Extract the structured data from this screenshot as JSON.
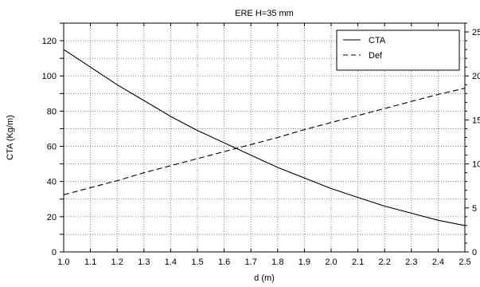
{
  "chart_data": {
    "type": "line",
    "title": "ERE H=35 mm",
    "xlabel": "d (m)",
    "ylabel": "CTA (Kg/m)",
    "y2label": "",
    "xlim": [
      1.0,
      2.5
    ],
    "ylim": [
      0,
      130
    ],
    "y2lim": [
      0,
      26
    ],
    "x_ticks": [
      "1.0",
      "1.1",
      "1.2",
      "1.3",
      "1.4",
      "1.5",
      "1.6",
      "1.7",
      "1.8",
      "1.9",
      "2.0",
      "2.1",
      "2.2",
      "2.3",
      "2.4",
      "2.5"
    ],
    "y_ticks": [
      "0",
      "20",
      "40",
      "60",
      "80",
      "100",
      "120"
    ],
    "y2_ticks": [
      "0",
      "5",
      "10",
      "15",
      "20",
      "25"
    ],
    "grid": true,
    "legend_position": "top-right",
    "x": [
      1.0,
      1.1,
      1.2,
      1.3,
      1.4,
      1.5,
      1.6,
      1.7,
      1.8,
      1.9,
      2.0,
      2.1,
      2.2,
      2.3,
      2.4,
      2.5
    ],
    "series": [
      {
        "name": "CTA",
        "axis": "left",
        "style": "solid",
        "color": "#000000",
        "values": [
          115,
          105,
          95,
          86,
          77,
          69,
          62,
          55,
          48,
          42,
          36,
          31,
          26,
          22,
          18,
          15
        ]
      },
      {
        "name": "Def",
        "axis": "right",
        "style": "dashed",
        "color": "#000000",
        "values": [
          6.5,
          7.3,
          8.1,
          9.0,
          9.8,
          10.6,
          11.4,
          12.2,
          13.0,
          13.9,
          14.7,
          15.5,
          16.3,
          17.1,
          17.9,
          18.6
        ]
      }
    ]
  }
}
